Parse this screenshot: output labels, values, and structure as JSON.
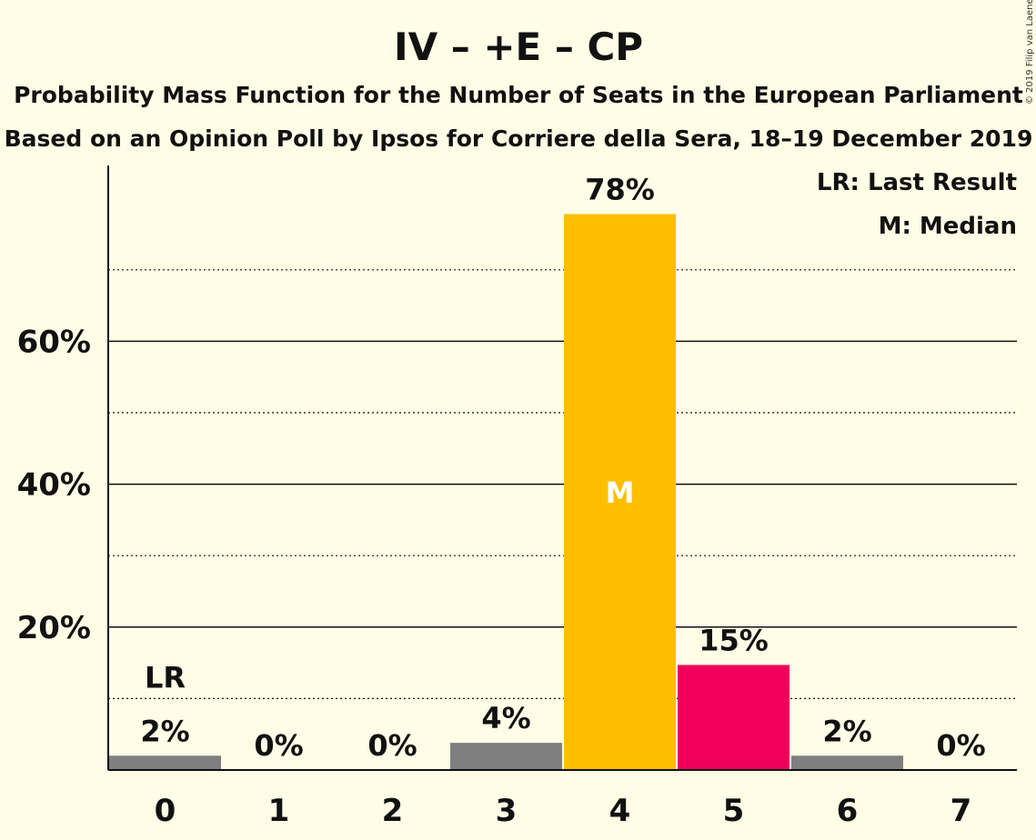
{
  "title": "IV – +E – CP",
  "subtitle_1": "Probability Mass Function for the Number of Seats in the European Parliament",
  "subtitle_2": "Based on an Opinion Poll by Ipsos for Corriere della Sera, 18–19 December 2019",
  "copyright": "© 2019 Filip van Laenen",
  "legend": {
    "last_result": "LR: Last Result",
    "median": "M: Median"
  },
  "colors": {
    "background": "#FFFDE6",
    "grey_bar": "#7F7F7F",
    "median_bar": "#FFBF00",
    "highlight_bar": "#F0005A",
    "axis": "#111111"
  },
  "chart_data": {
    "type": "bar",
    "title": "IV – +E – CP",
    "xlabel": "",
    "ylabel": "",
    "categories": [
      "0",
      "1",
      "2",
      "3",
      "4",
      "5",
      "6",
      "7"
    ],
    "values": [
      2,
      0,
      0,
      4,
      78,
      15,
      2,
      0
    ],
    "precise_values": [
      2.0,
      0.0,
      0.0,
      3.8,
      77.8,
      14.7,
      2.0,
      0.0
    ],
    "data_labels": [
      "2%",
      "0%",
      "0%",
      "4%",
      "78%",
      "15%",
      "2%",
      "0%"
    ],
    "bar_colors": [
      "#7F7F7F",
      "#7F7F7F",
      "#7F7F7F",
      "#7F7F7F",
      "#FFBF00",
      "#F0005A",
      "#7F7F7F",
      "#7F7F7F"
    ],
    "ylim": [
      0,
      84
    ],
    "yticks": [
      20,
      40,
      60
    ],
    "ytick_labels": [
      "20%",
      "40%",
      "60%"
    ],
    "minor_grid": [
      10,
      30,
      50,
      70
    ],
    "last_result_index": 0,
    "last_result_marker": "LR",
    "median_index": 4,
    "median_marker": "M",
    "legend_position": "top-right"
  }
}
